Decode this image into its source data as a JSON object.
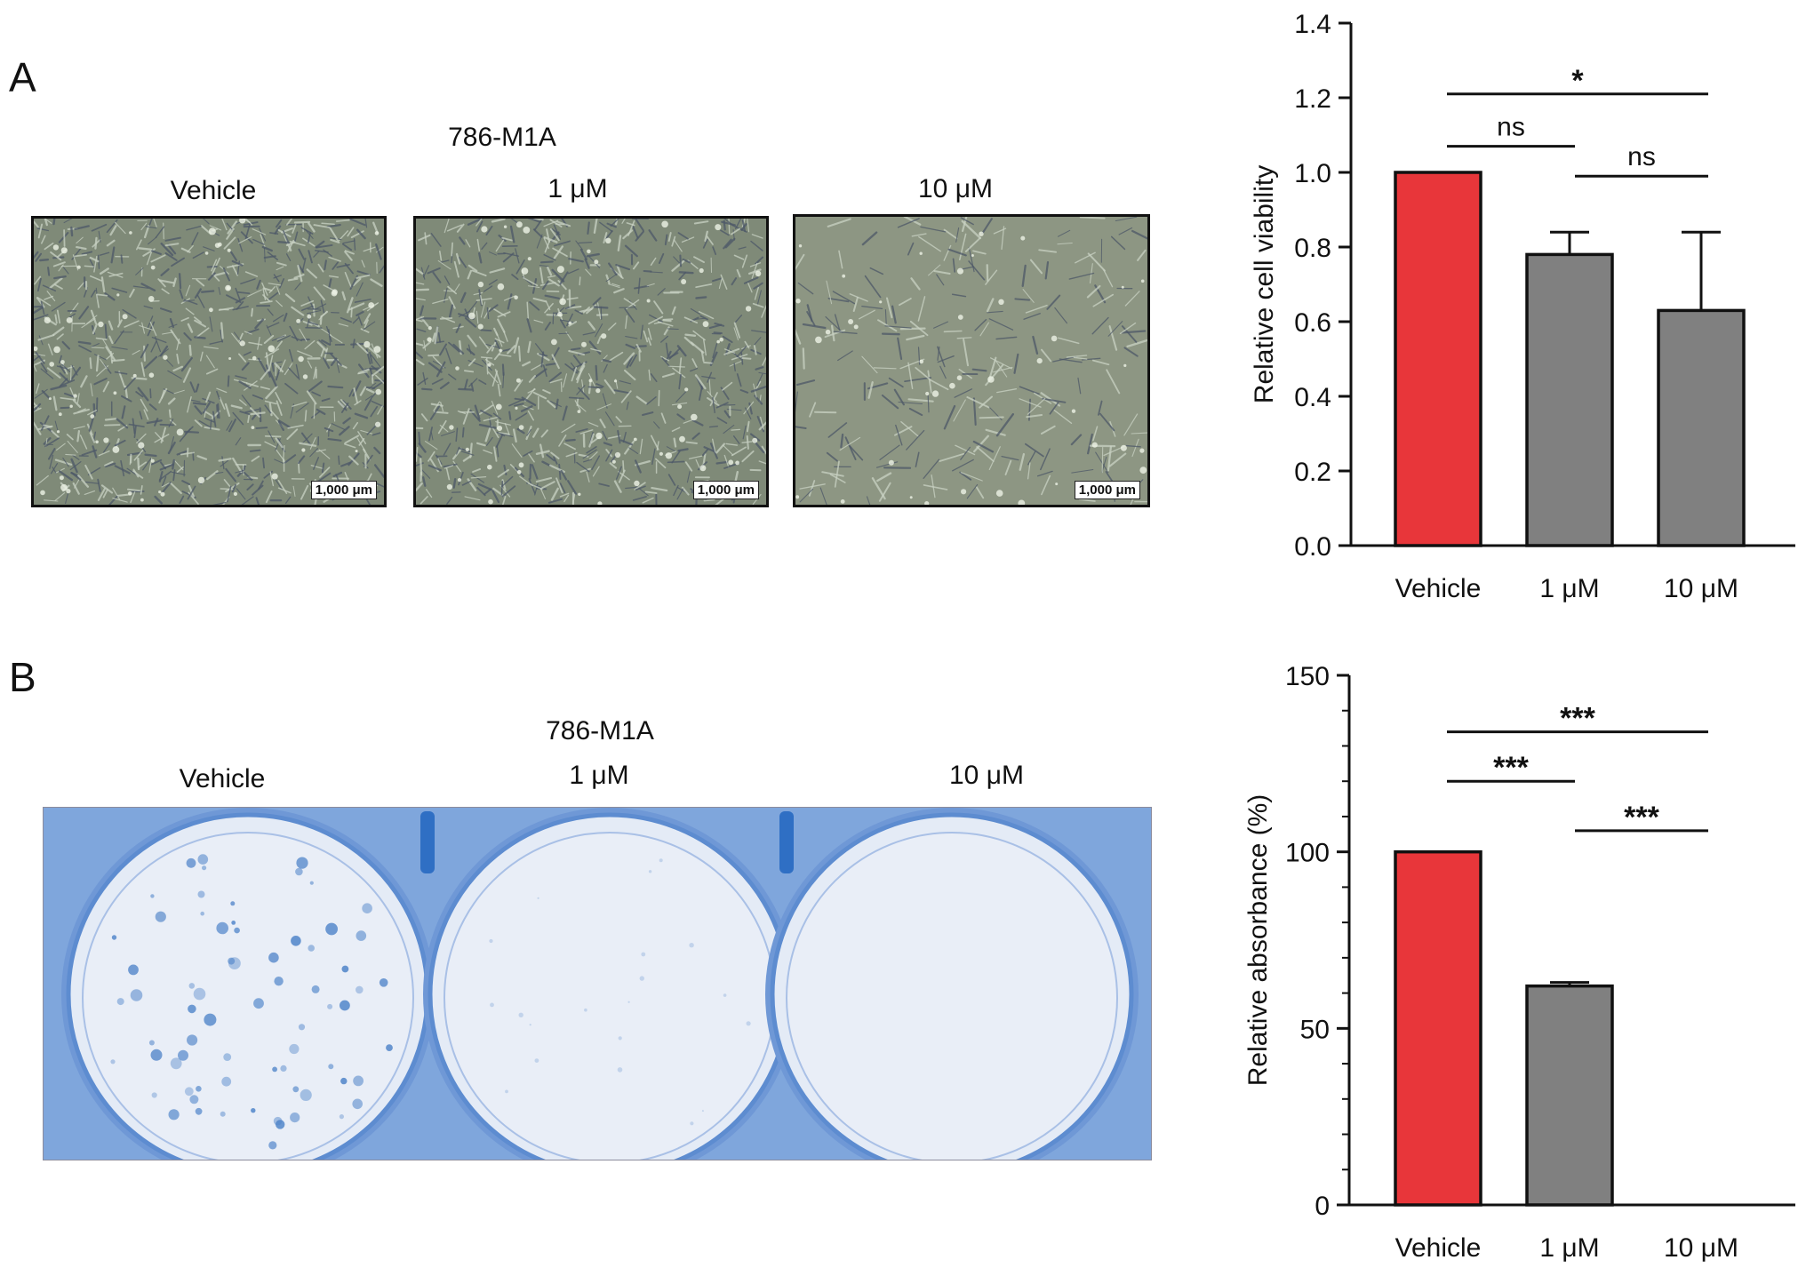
{
  "panel_a": {
    "letter": "A",
    "cell_line": "786-M1A",
    "images": [
      {
        "label": "Vehicle",
        "scale_bar": "1,000 μm"
      },
      {
        "label": "1 μM",
        "scale_bar": "1,000 μm"
      },
      {
        "label": "10 μM",
        "scale_bar": "1,000 μm"
      }
    ]
  },
  "panel_b": {
    "letter": "B",
    "cell_line": "786-M1A",
    "wells": [
      {
        "label": "Vehicle"
      },
      {
        "label": "1 μM"
      },
      {
        "label": "10 μM"
      }
    ]
  },
  "colors": {
    "vehicle_bar": "#E8363A",
    "treatment_bar": "#808080",
    "axis": "#111111",
    "micrograph_dense": "#7f8a78",
    "micrograph_sparse": "#8d9683",
    "plate_bg": "#d8e2f2",
    "plate_stain": "#4f84c9"
  },
  "chart_data": [
    {
      "type": "bar",
      "ylabel": "Relative cell viability",
      "ylim": [
        0,
        1.4
      ],
      "yticks": [
        "0.0",
        "0.2",
        "0.4",
        "0.6",
        "0.8",
        "1.0",
        "1.2",
        "1.4"
      ],
      "categories": [
        "Vehicle",
        "1 μM",
        "10 μM"
      ],
      "values": [
        1.0,
        0.78,
        0.63
      ],
      "errors": [
        0,
        0.06,
        0.21
      ],
      "significance": [
        {
          "from": 0,
          "to": 1,
          "label": "ns",
          "y": 1.07
        },
        {
          "from": 1,
          "to": 2,
          "label": "ns",
          "y": 0.99
        },
        {
          "from": 0,
          "to": 2,
          "label": "*",
          "y": 1.21
        }
      ]
    },
    {
      "type": "bar",
      "ylabel": "Relative absorbance (%)",
      "ylim": [
        0,
        150
      ],
      "yticks": [
        "0",
        "50",
        "100",
        "150"
      ],
      "minor_ticks": true,
      "categories": [
        "Vehicle",
        "1 μM",
        "10 μM"
      ],
      "values": [
        100,
        62,
        0
      ],
      "errors": [
        0,
        1,
        0
      ],
      "significance": [
        {
          "from": 0,
          "to": 1,
          "label": "***",
          "y": 120
        },
        {
          "from": 1,
          "to": 2,
          "label": "***",
          "y": 106
        },
        {
          "from": 0,
          "to": 2,
          "label": "***",
          "y": 134
        }
      ]
    }
  ]
}
